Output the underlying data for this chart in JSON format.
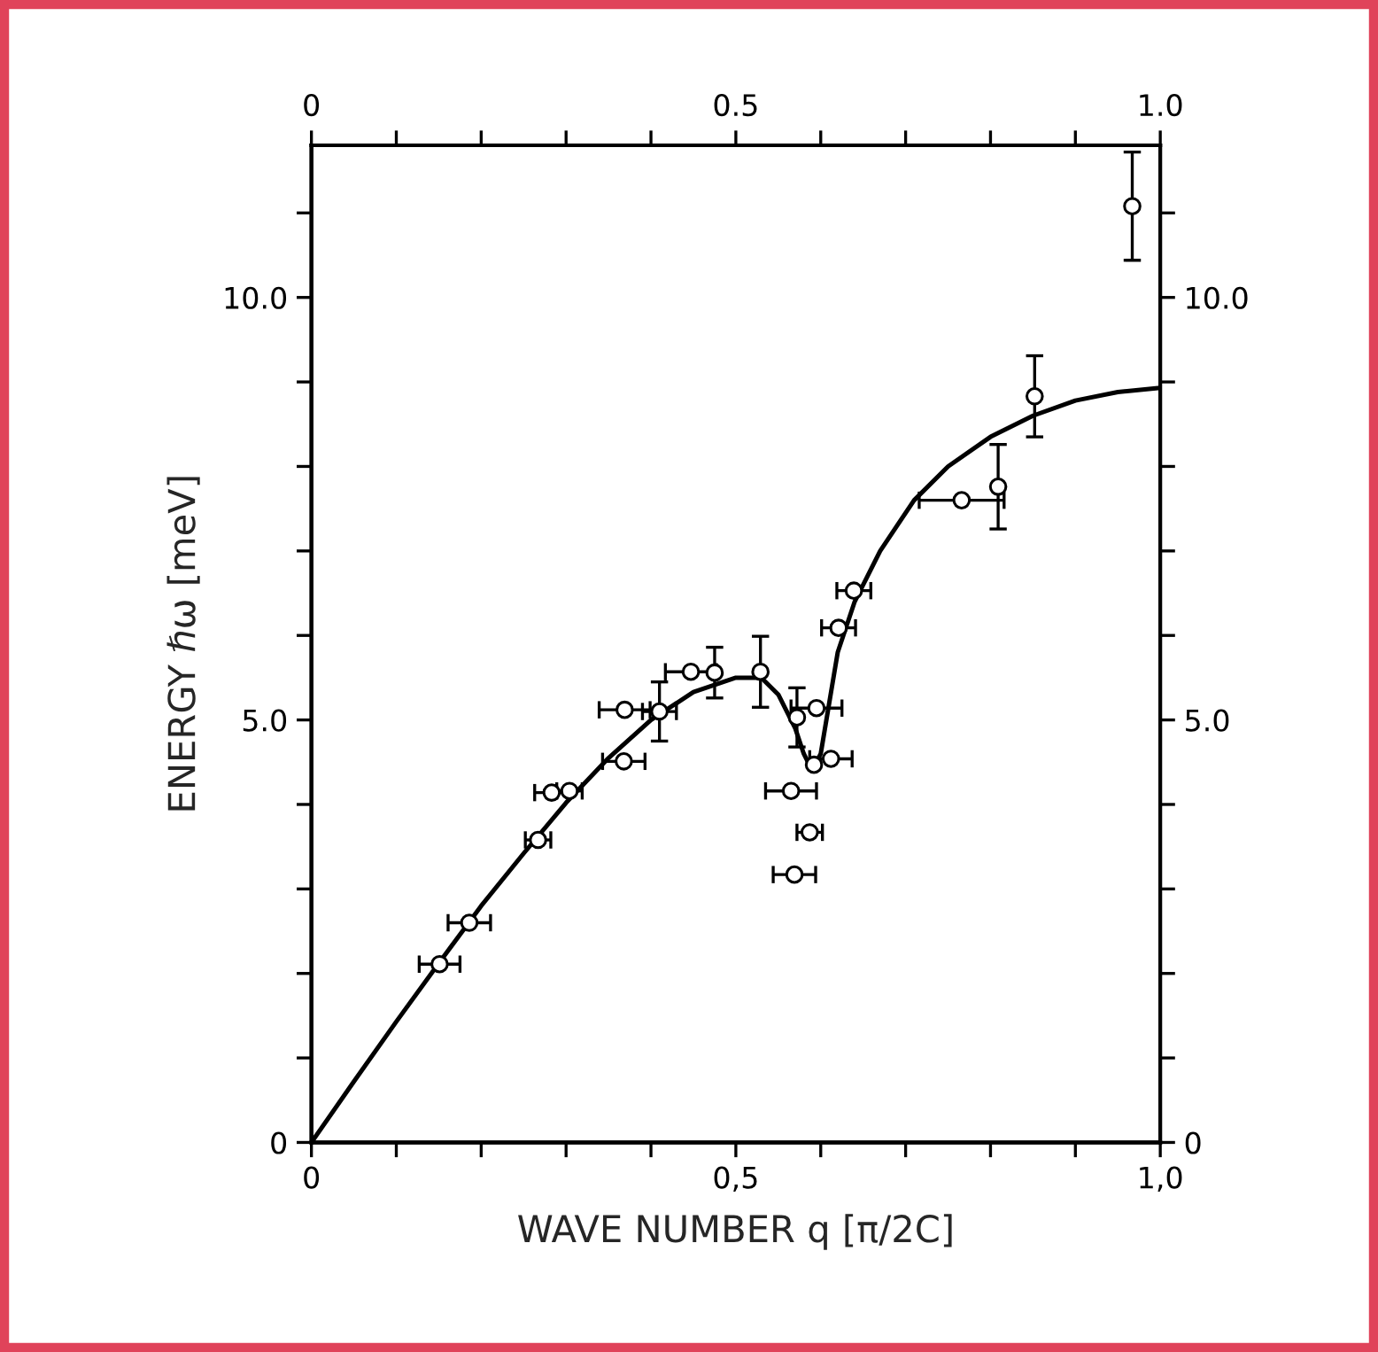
{
  "chart_data": {
    "type": "scatter",
    "xlabel": "WAVE NUMBER q [π/2C]",
    "ylabel": "ENERGY ℏω [meV]",
    "xlim": [
      0,
      1.0
    ],
    "ylim": [
      0,
      11.8
    ],
    "x2lim": [
      0,
      1.0
    ],
    "y2lim": [
      0,
      11.8
    ],
    "xticks": [
      0,
      {
        "value": 0.1,
        "label": null
      },
      {
        "value": 0.2,
        "label": null
      },
      {
        "value": 0.3,
        "label": null
      },
      {
        "value": 0.4,
        "label": null
      },
      {
        "value": 0.5,
        "label": "0,5"
      },
      {
        "value": 0.6,
        "label": null
      },
      {
        "value": 0.7,
        "label": null
      },
      {
        "value": 0.8,
        "label": null
      },
      {
        "value": 0.9,
        "label": null
      },
      {
        "value": 1.0,
        "label": "1,0"
      }
    ],
    "x2ticks": [
      0,
      {
        "value": 0.1,
        "label": null
      },
      {
        "value": 0.2,
        "label": null
      },
      {
        "value": 0.3,
        "label": null
      },
      {
        "value": 0.4,
        "label": null
      },
      {
        "value": 0.5,
        "label": "0.5"
      },
      {
        "value": 0.6,
        "label": null
      },
      {
        "value": 0.7,
        "label": null
      },
      {
        "value": 0.8,
        "label": null
      },
      {
        "value": 0.9,
        "label": null
      },
      {
        "value": 1.0,
        "label": "1.0"
      }
    ],
    "yticks": [
      0,
      {
        "value": 1,
        "label": null
      },
      {
        "value": 2,
        "label": null
      },
      {
        "value": 3,
        "label": null
      },
      {
        "value": 4,
        "label": null
      },
      {
        "value": 5,
        "label": "5.0"
      },
      {
        "value": 6,
        "label": null
      },
      {
        "value": 7,
        "label": null
      },
      {
        "value": 8,
        "label": null
      },
      {
        "value": 9,
        "label": null
      },
      {
        "value": 10,
        "label": "10.0"
      },
      {
        "value": 11,
        "label": null
      }
    ],
    "y2ticks": [
      0,
      {
        "value": 1,
        "label": null
      },
      {
        "value": 2,
        "label": null
      },
      {
        "value": 3,
        "label": null
      },
      {
        "value": 4,
        "label": null
      },
      {
        "value": 5,
        "label": "5.0"
      },
      {
        "value": 6,
        "label": null
      },
      {
        "value": 7,
        "label": null
      },
      {
        "value": 8,
        "label": null
      },
      {
        "value": 9,
        "label": null
      },
      {
        "value": 10,
        "label": "10.0"
      },
      {
        "value": 11,
        "label": null
      }
    ],
    "grid": false,
    "series": [
      {
        "type": "line",
        "color": "#000000",
        "marker": "none",
        "line_style": "solid",
        "x": [
          0,
          0.05,
          0.1,
          0.15,
          0.2,
          0.25,
          0.3,
          0.35,
          0.4,
          0.45,
          0.5,
          0.53,
          0.55,
          0.57,
          0.58,
          0.59,
          0.6,
          0.61,
          0.62,
          0.64,
          0.67,
          0.71,
          0.75,
          0.8,
          0.85,
          0.9,
          0.95,
          1.0
        ],
        "values": [
          0,
          0.72,
          1.43,
          2.12,
          2.8,
          3.42,
          4.02,
          4.55,
          5.0,
          5.33,
          5.5,
          5.5,
          5.3,
          4.9,
          4.6,
          4.4,
          4.6,
          5.2,
          5.8,
          6.4,
          7.0,
          7.6,
          8.0,
          8.35,
          8.6,
          8.78,
          8.88,
          8.93
        ]
      },
      {
        "color": "#000000",
        "marker": "circle",
        "x": [
          0.151,
          0.186,
          0.267,
          0.283,
          0.304,
          0.368,
          0.369,
          0.41,
          0.447,
          0.475,
          0.529,
          0.572,
          0.595,
          0.592,
          0.612,
          0.565,
          0.587,
          0.569,
          0.621,
          0.639,
          0.766,
          0.809,
          0.852,
          0.967
        ],
        "values": [
          2.11,
          2.6,
          3.58,
          4.14,
          4.16,
          4.51,
          5.12,
          5.1,
          5.57,
          5.56,
          5.57,
          5.03,
          5.14,
          4.47,
          4.54,
          4.16,
          3.67,
          3.17,
          6.09,
          6.53,
          7.6,
          7.76,
          8.83,
          11.08
        ],
        "errors": [
          null,
          null,
          null,
          null,
          null,
          null,
          null,
          0.35,
          null,
          0.3,
          0.42,
          0.35,
          null,
          null,
          null,
          null,
          null,
          null,
          null,
          null,
          null,
          0.5,
          0.48,
          0.64
        ],
        "xerrors": [
          0.024,
          0.025,
          0.015,
          0.02,
          0.015,
          0.025,
          0.03,
          0.02,
          0.03,
          null,
          null,
          null,
          0.03,
          null,
          0.025,
          0.03,
          0.015,
          0.025,
          0.02,
          0.02,
          0.05,
          null,
          null,
          null
        ]
      }
    ]
  }
}
